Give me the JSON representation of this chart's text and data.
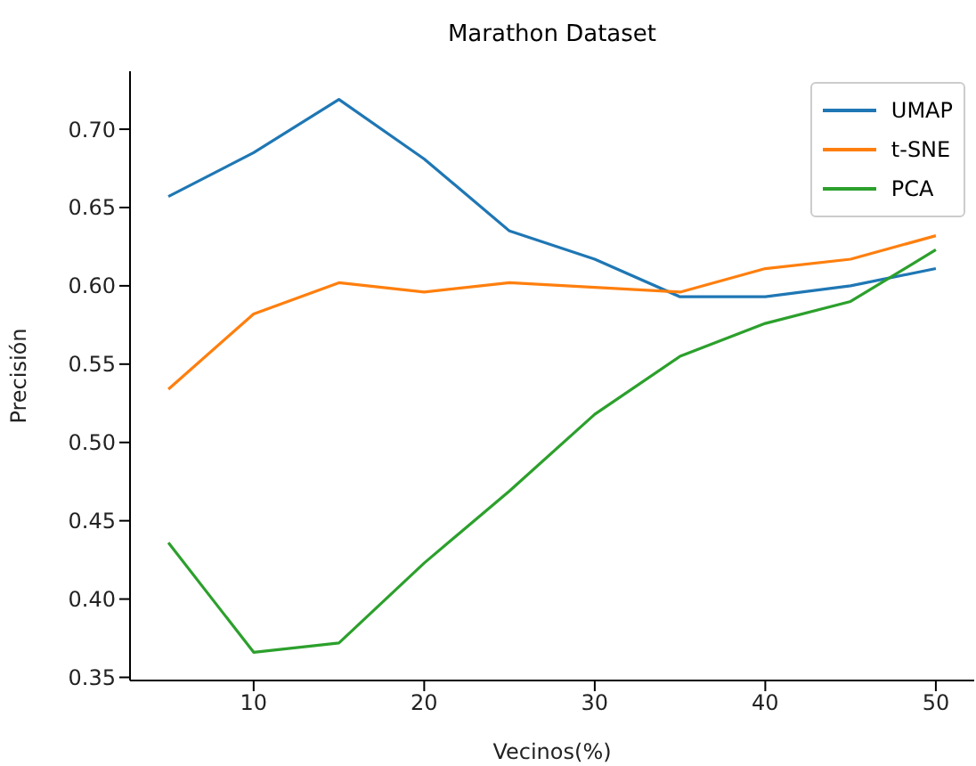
{
  "chart_data": {
    "type": "line",
    "title": "Marathon Dataset",
    "xlabel": "Vecinos(%)",
    "ylabel": "Precisión",
    "x": [
      5,
      10,
      15,
      20,
      25,
      30,
      35,
      40,
      45,
      50
    ],
    "series": [
      {
        "name": "UMAP",
        "color": "#1f77b4",
        "values": [
          0.657,
          0.685,
          0.719,
          0.681,
          0.635,
          0.617,
          0.593,
          0.593,
          0.6,
          0.611
        ]
      },
      {
        "name": "t-SNE",
        "color": "#ff7f0e",
        "values": [
          0.534,
          0.582,
          0.602,
          0.596,
          0.602,
          0.599,
          0.596,
          0.611,
          0.617,
          0.632
        ]
      },
      {
        "name": "PCA",
        "color": "#2ca02c",
        "values": [
          0.436,
          0.366,
          0.372,
          0.423,
          0.469,
          0.518,
          0.555,
          0.576,
          0.59,
          0.623
        ]
      }
    ],
    "xlim": [
      2.75,
      52.25
    ],
    "xticks": [
      10,
      20,
      30,
      40,
      50
    ],
    "ylim": [
      0.348,
      0.737
    ],
    "yticks": [
      {
        "value": 0.35,
        "label": "0.35"
      },
      {
        "value": 0.4,
        "label": "0.40"
      },
      {
        "value": 0.45,
        "label": "0.45"
      },
      {
        "value": 0.5,
        "label": "0.50"
      },
      {
        "value": 0.55,
        "label": "0.55"
      },
      {
        "value": 0.6,
        "label": "0.60"
      },
      {
        "value": 0.65,
        "label": "0.65"
      },
      {
        "value": 0.7,
        "label": "0.70"
      }
    ],
    "grid": false,
    "legend": "top right",
    "marker": "none",
    "line_style": "solid"
  }
}
